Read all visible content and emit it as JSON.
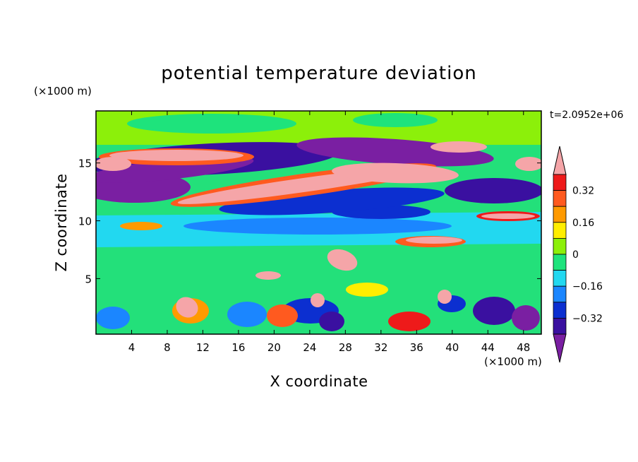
{
  "chart_data": {
    "type": "heatmap",
    "title": "potential temperature deviation",
    "xlabel": "X coordinate",
    "ylabel": "Z coordinate",
    "x_unit": "(×1000 m)",
    "y_unit": "(×1000 m)",
    "time_label": "t=2.0952e+06",
    "xlim": [
      0,
      50
    ],
    "ylim": [
      0.2,
      19.5
    ],
    "x_ticks": [
      "4",
      "8",
      "12",
      "16",
      "20",
      "24",
      "28",
      "32",
      "36",
      "40",
      "44",
      "48"
    ],
    "y_ticks": [
      "5",
      "10",
      "15"
    ],
    "colorbar": {
      "levels": [
        -0.4,
        -0.32,
        -0.24,
        -0.16,
        -0.08,
        0,
        0.08,
        0.16,
        0.24,
        0.32,
        0.4
      ],
      "tick_labels": [
        "0.32",
        "0.16",
        "0",
        "−0.16",
        "−0.32"
      ],
      "colors": [
        "#7a1fa2",
        "#3a10a0",
        "#0c2fd0",
        "#1b86ff",
        "#22d8f0",
        "#1ee37c",
        "#8cf00a",
        "#ffee00",
        "#ff9a00",
        "#ff5a1f",
        "#ee1a1a",
        "#f5a5a8"
      ],
      "extends": "both"
    },
    "background_color": "#23e07a"
  }
}
